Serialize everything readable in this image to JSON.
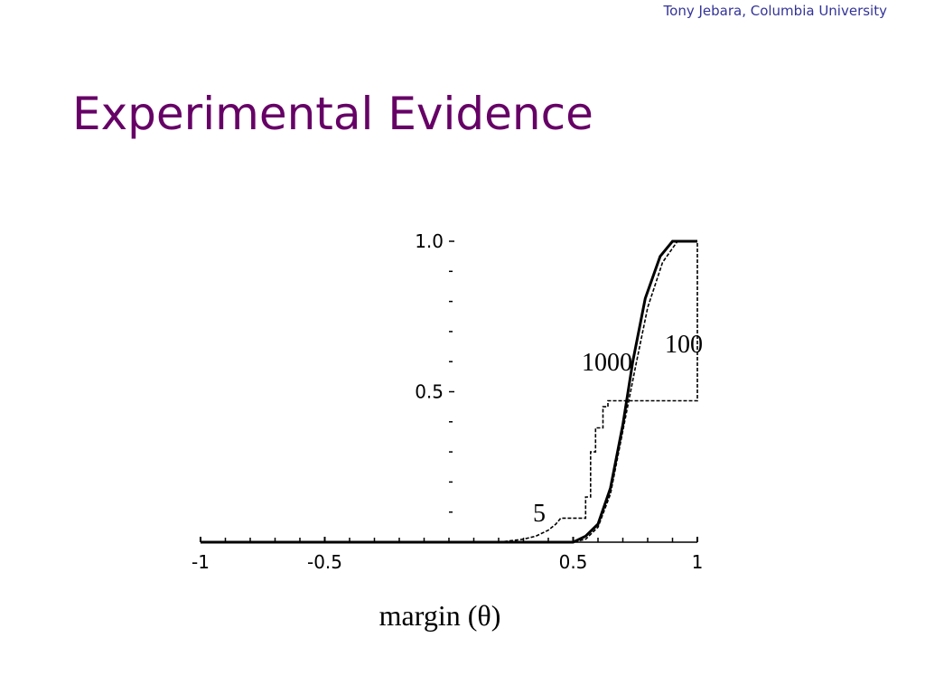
{
  "header": {
    "author": "Tony Jebara, Columbia University",
    "title": "Experimental Evidence"
  },
  "chart_data": {
    "type": "line",
    "xlabel": "margin (θ)",
    "xlim": [
      -1,
      1
    ],
    "ylim": [
      0,
      1
    ],
    "xticks": [
      -1,
      -0.5,
      0.5,
      1
    ],
    "xticks_minor": [
      -0.9,
      -0.8,
      -0.7,
      -0.6,
      -0.4,
      -0.3,
      -0.2,
      -0.1,
      0,
      0.1,
      0.2,
      0.3,
      0.4,
      0.6,
      0.7,
      0.8,
      0.9
    ],
    "yticks": [
      {
        "value": 0.5,
        "label": "0.5"
      },
      {
        "value": 1,
        "label": "1.0"
      }
    ],
    "yticks_minor": [
      0.1,
      0.2,
      0.3,
      0.4,
      0.6,
      0.7,
      0.8,
      0.9
    ],
    "series": [
      {
        "name": "5",
        "color": "#000000",
        "style": "dashed",
        "x": [
          -1,
          0.2,
          0.3,
          0.35,
          0.4,
          0.43,
          0.45,
          0.55,
          0.55,
          0.57,
          0.57,
          0.59,
          0.59,
          0.62,
          0.62,
          0.64,
          0.64,
          1,
          1
        ],
        "values": [
          0,
          0,
          0.01,
          0.02,
          0.04,
          0.06,
          0.08,
          0.08,
          0.15,
          0.15,
          0.3,
          0.3,
          0.38,
          0.38,
          0.45,
          0.45,
          0.47,
          0.47,
          1
        ]
      },
      {
        "name": "100",
        "color": "#000000",
        "style": "dashed",
        "x": [
          -1,
          0.5,
          0.55,
          0.6,
          0.65,
          0.7,
          0.75,
          0.8,
          0.86,
          0.92,
          1
        ],
        "values": [
          0,
          0,
          0.01,
          0.05,
          0.16,
          0.37,
          0.58,
          0.78,
          0.93,
          1,
          1
        ]
      },
      {
        "name": "1000",
        "color": "#000000",
        "style": "solid",
        "x": [
          -1,
          0.5,
          0.55,
          0.6,
          0.65,
          0.7,
          0.74,
          0.79,
          0.85,
          0.9,
          1
        ],
        "values": [
          0,
          0,
          0.02,
          0.06,
          0.18,
          0.39,
          0.6,
          0.81,
          0.95,
          1,
          1
        ]
      }
    ]
  }
}
